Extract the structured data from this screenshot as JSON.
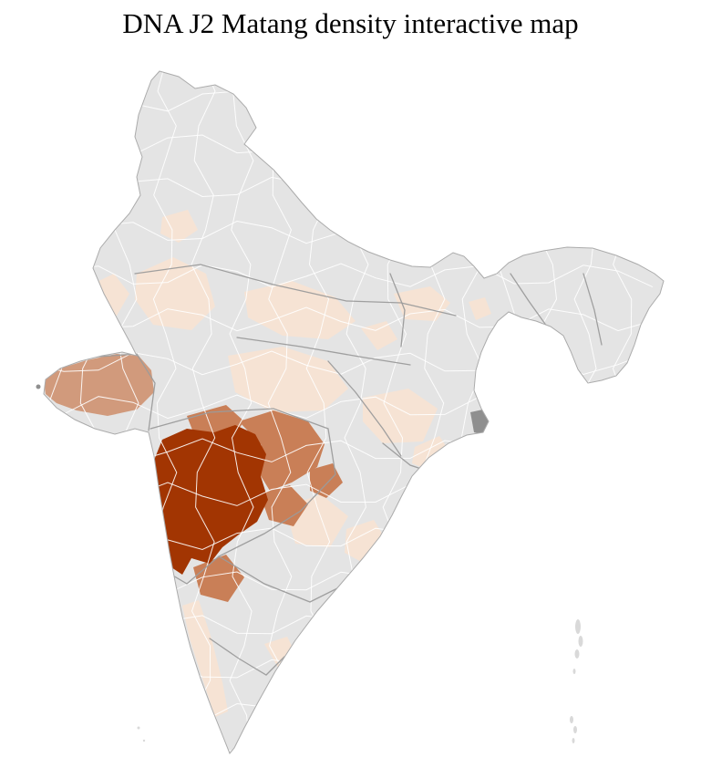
{
  "title": "DNA J2 Matang density interactive map",
  "map": {
    "label": "India district-level choropleth of DNA J2 Matang density",
    "colors": {
      "background": "#ffffff",
      "no_data": "#e4e4e4",
      "outline_border": "#ababab",
      "district_border": "#ffffff",
      "state_border": "#9b9b9b",
      "density_low": "#f6e3d4",
      "density_medium_low": "#d19a7c",
      "density_medium": "#c97f57",
      "density_high": "#a23502",
      "special_gray": "#8f8f8f",
      "island": "#d9d9d9"
    },
    "density_scale": [
      {
        "level": "none",
        "color": "#e4e4e4"
      },
      {
        "level": "low",
        "color": "#f6e3d4"
      },
      {
        "level": "medium",
        "color": "#c97f57"
      },
      {
        "level": "high",
        "color": "#a23502"
      }
    ]
  }
}
